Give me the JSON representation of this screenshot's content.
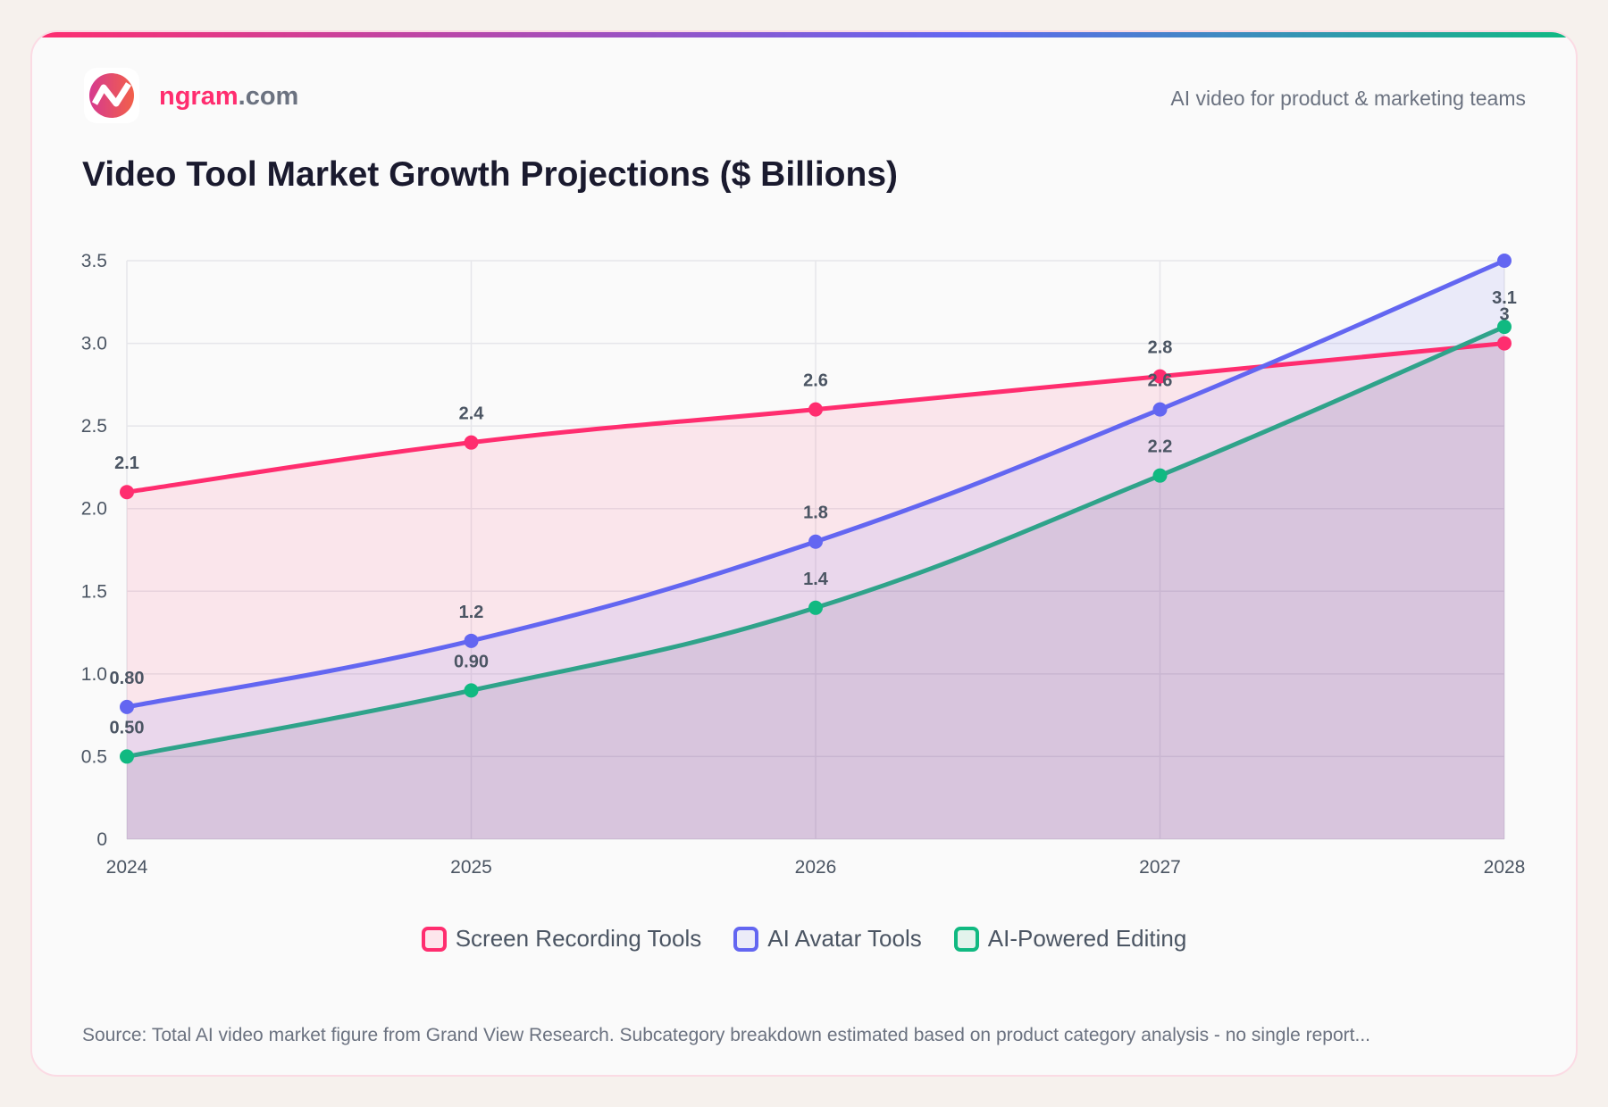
{
  "header": {
    "brand_name": "ngram",
    "brand_domain": ".com",
    "tagline": "AI video for product & marketing teams"
  },
  "colors": {
    "accent": "#ff2d6f",
    "screen": "#ff2d6f",
    "avatar": "#6366f1",
    "editing": "#10b981"
  },
  "chart_data": {
    "type": "line",
    "title": "Video Tool Market Growth Projections ($ Billions)",
    "categories": [
      "2024",
      "2025",
      "2026",
      "2027",
      "2028"
    ],
    "ylim": [
      0,
      3.5
    ],
    "yticks": [
      "0",
      "0.5",
      "1.0",
      "1.5",
      "2.0",
      "2.5",
      "3.0",
      "3.5"
    ],
    "grid": true,
    "legend_position": "bottom",
    "fill": true,
    "series": [
      {
        "name": "Screen Recording Tools",
        "color": "#ff2d6f",
        "fill": "rgba(255,45,111,0.10)",
        "values": [
          2.1,
          2.4,
          2.6,
          2.8,
          3.0
        ],
        "labels": [
          "2.1",
          "2.4",
          "2.6",
          "2.8",
          "3"
        ]
      },
      {
        "name": "AI Avatar Tools",
        "color": "#6366f1",
        "fill": "rgba(99,102,241,0.10)",
        "values": [
          0.8,
          1.2,
          1.8,
          2.6,
          3.5
        ],
        "labels": [
          "0.80",
          "1.2",
          "1.8",
          "2.6",
          null
        ]
      },
      {
        "name": "AI-Powered Editing",
        "color": "#10b981",
        "line_color": "#2fa38a",
        "fill": "rgba(60,40,90,0.10)",
        "values": [
          0.5,
          0.9,
          1.4,
          2.2,
          3.1
        ],
        "labels": [
          "0.50",
          "0.90",
          "1.4",
          "2.2",
          "3.1"
        ]
      }
    ]
  },
  "source": "Source: Total AI video market figure from Grand View Research. Subcategory breakdown estimated based on product category analysis - no single report..."
}
